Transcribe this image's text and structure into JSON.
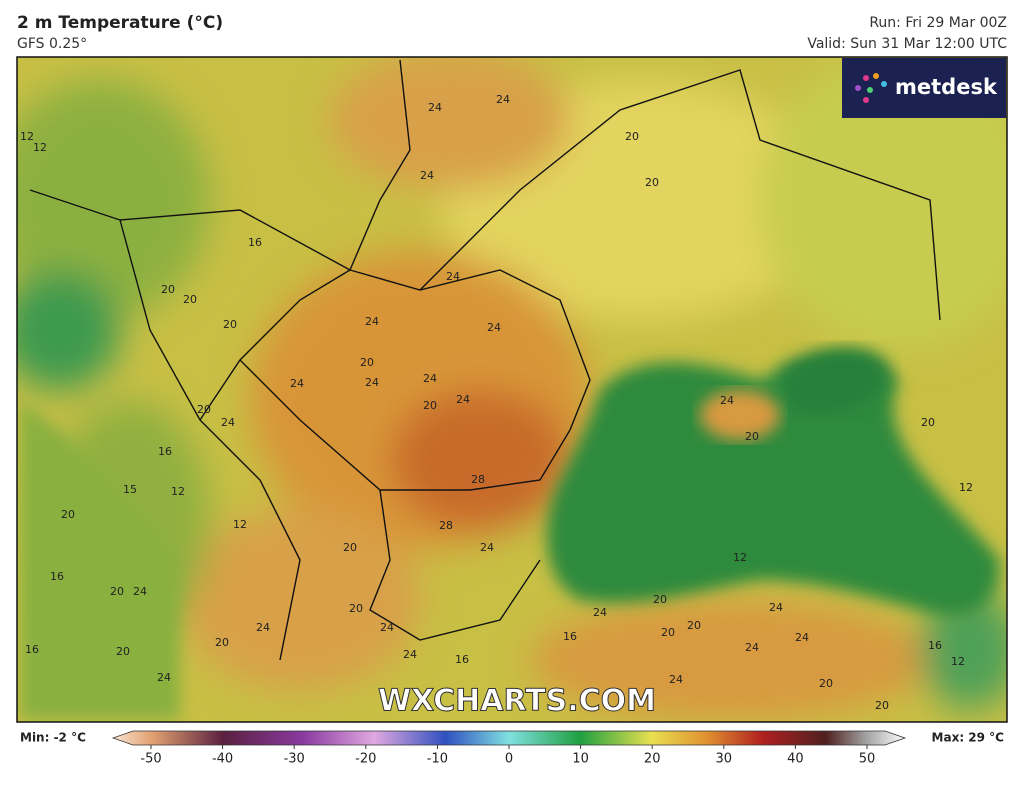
{
  "header": {
    "title": "2 m Temperature (°C)",
    "subtitle": "GFS 0.25°",
    "run": "Run: Fri 29 Mar 00Z",
    "valid": "Valid: Sun 31 Mar 12:00 UTC"
  },
  "logo": "metdesk",
  "watermark": "WXCHARTS.COM",
  "map": {
    "contour_labels": [
      24,
      24,
      24,
      20,
      20,
      12,
      12,
      16,
      20,
      20,
      20,
      24,
      24,
      24,
      20,
      24,
      24,
      24,
      24,
      20,
      20,
      24,
      24,
      20,
      20,
      16,
      15,
      12,
      12,
      28,
      28,
      24,
      20,
      20,
      16,
      12,
      12,
      20,
      24,
      20,
      24,
      24,
      24,
      20,
      24,
      20,
      20,
      24,
      24,
      16,
      12,
      16,
      20,
      20,
      24,
      16,
      24,
      20,
      24,
      20,
      16
    ]
  },
  "colorbar": {
    "min_label": "Min: -2 °C",
    "max_label": "Max: 29 °C",
    "ticks": [
      -50,
      -40,
      -30,
      -20,
      -10,
      0,
      10,
      20,
      30,
      40,
      50
    ]
  }
}
